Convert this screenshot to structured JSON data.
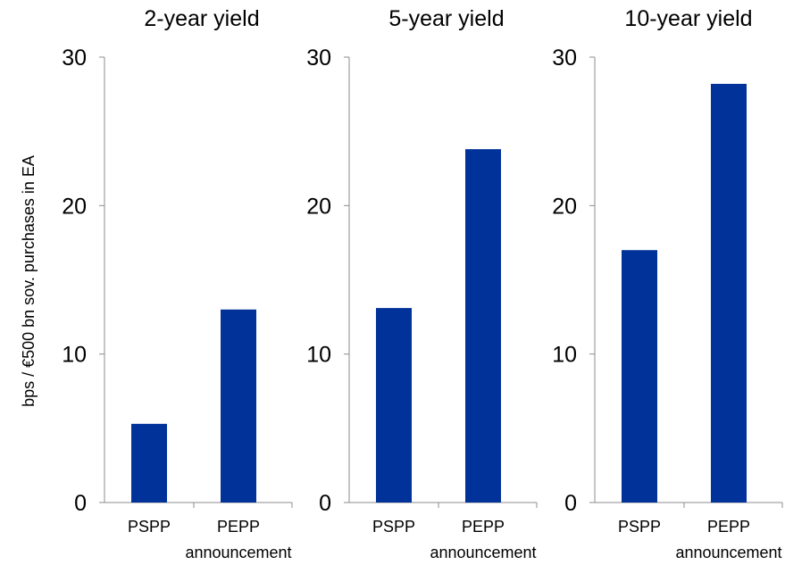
{
  "chart_data": [
    {
      "type": "bar",
      "title": "2-year yield",
      "categories": [
        "PSPP",
        "PEPP announcement"
      ],
      "category_lines": [
        [
          "PSPP"
        ],
        [
          "PEPP",
          "announcement"
        ]
      ],
      "values": [
        5.3,
        13.0
      ],
      "ylabel": "bps / €500 bn sov. purchases in EA",
      "ylim": [
        0,
        30
      ],
      "yticks": [
        0,
        10,
        20,
        30
      ],
      "grid": false,
      "bar_color": "#003299"
    },
    {
      "type": "bar",
      "title": "5-year yield",
      "categories": [
        "PSPP",
        "PEPP announcement"
      ],
      "category_lines": [
        [
          "PSPP"
        ],
        [
          "PEPP",
          "announcement"
        ]
      ],
      "values": [
        13.1,
        23.8
      ],
      "ylabel": "",
      "ylim": [
        0,
        30
      ],
      "yticks": [
        0,
        10,
        20,
        30
      ],
      "grid": false,
      "bar_color": "#003299"
    },
    {
      "type": "bar",
      "title": "10-year yield",
      "categories": [
        "PSPP",
        "PEPP announcement"
      ],
      "category_lines": [
        [
          "PSPP"
        ],
        [
          "PEPP",
          "announcement"
        ]
      ],
      "values": [
        17.0,
        28.2
      ],
      "ylabel": "",
      "ylim": [
        0,
        30
      ],
      "yticks": [
        0,
        10,
        20,
        30
      ],
      "grid": false,
      "bar_color": "#003299"
    }
  ]
}
